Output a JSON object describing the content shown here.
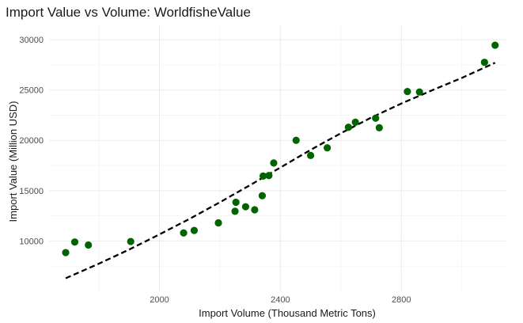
{
  "chart_data": {
    "type": "scatter",
    "title": "Import Value vs Volume: WorldfisheValue",
    "xlabel": "Import Volume (Thousand Metric Tons)",
    "ylabel": "Import Value (Million USD)",
    "xlim": [
      1635,
      3150
    ],
    "ylim": [
      5000,
      31500
    ],
    "x_ticks": [
      2000,
      2400,
      2800
    ],
    "x_minor_ticks": [
      1800,
      2200,
      2600,
      3000
    ],
    "y_ticks": [
      10000,
      15000,
      20000,
      25000,
      30000
    ],
    "y_minor_ticks": [
      7500,
      12500,
      17500,
      22500,
      27500
    ],
    "grid": true,
    "point_color": "#006400",
    "trend_color": "#000000",
    "points": [
      {
        "x": 1690,
        "y": 8850
      },
      {
        "x": 1720,
        "y": 9900
      },
      {
        "x": 1765,
        "y": 9600
      },
      {
        "x": 1905,
        "y": 9950
      },
      {
        "x": 2080,
        "y": 10800
      },
      {
        "x": 2115,
        "y": 11050
      },
      {
        "x": 2195,
        "y": 11800
      },
      {
        "x": 2250,
        "y": 12950
      },
      {
        "x": 2253,
        "y": 13850
      },
      {
        "x": 2285,
        "y": 13400
      },
      {
        "x": 2315,
        "y": 13100
      },
      {
        "x": 2340,
        "y": 14500
      },
      {
        "x": 2343,
        "y": 16450
      },
      {
        "x": 2362,
        "y": 16500
      },
      {
        "x": 2378,
        "y": 17750
      },
      {
        "x": 2452,
        "y": 20000
      },
      {
        "x": 2500,
        "y": 18500
      },
      {
        "x": 2555,
        "y": 19250
      },
      {
        "x": 2625,
        "y": 21300
      },
      {
        "x": 2648,
        "y": 21800
      },
      {
        "x": 2715,
        "y": 22200
      },
      {
        "x": 2727,
        "y": 21250
      },
      {
        "x": 2820,
        "y": 24850
      },
      {
        "x": 2860,
        "y": 24800
      },
      {
        "x": 3075,
        "y": 27750
      },
      {
        "x": 3110,
        "y": 29450
      }
    ],
    "trend_line": [
      {
        "x": 1690,
        "y": 6300
      },
      {
        "x": 1800,
        "y": 7750
      },
      {
        "x": 1900,
        "y": 9150
      },
      {
        "x": 2000,
        "y": 10650
      },
      {
        "x": 2100,
        "y": 12200
      },
      {
        "x": 2200,
        "y": 13850
      },
      {
        "x": 2300,
        "y": 15550
      },
      {
        "x": 2400,
        "y": 17300
      },
      {
        "x": 2500,
        "y": 19050
      },
      {
        "x": 2600,
        "y": 20700
      },
      {
        "x": 2700,
        "y": 22250
      },
      {
        "x": 2800,
        "y": 23650
      },
      {
        "x": 2900,
        "y": 24950
      },
      {
        "x": 3000,
        "y": 26200
      },
      {
        "x": 3110,
        "y": 27700
      }
    ]
  }
}
